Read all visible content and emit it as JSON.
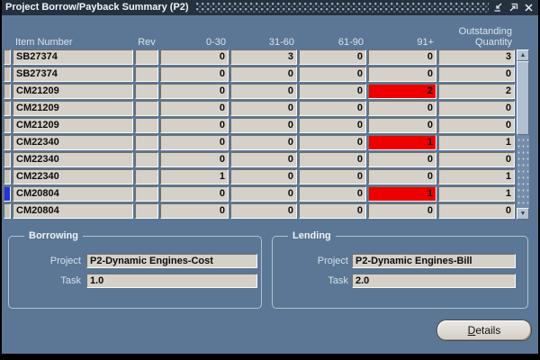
{
  "window": {
    "title": "Project Borrow/Payback Summary (P2)"
  },
  "table": {
    "columns": [
      {
        "id": "item",
        "label": "Item Number"
      },
      {
        "id": "rev",
        "label": "Rev"
      },
      {
        "id": "b0_30",
        "label": "0-30"
      },
      {
        "id": "b31_60",
        "label": "31-60"
      },
      {
        "id": "b61_90",
        "label": "61-90"
      },
      {
        "id": "b91_plus",
        "label": "91+"
      },
      {
        "id": "outstanding",
        "label": "Outstanding Quantity"
      }
    ],
    "rows": [
      {
        "item": "SB27374",
        "rev": "",
        "aging": [
          "0",
          "3",
          "0",
          "0"
        ],
        "outstanding": "3",
        "alert_91": false,
        "current": false
      },
      {
        "item": "SB27374",
        "rev": "",
        "aging": [
          "0",
          "0",
          "0",
          "0"
        ],
        "outstanding": "0",
        "alert_91": false,
        "current": false
      },
      {
        "item": "CM21209",
        "rev": "",
        "aging": [
          "0",
          "0",
          "0",
          "2"
        ],
        "outstanding": "2",
        "alert_91": true,
        "current": false
      },
      {
        "item": "CM21209",
        "rev": "",
        "aging": [
          "0",
          "0",
          "0",
          "0"
        ],
        "outstanding": "0",
        "alert_91": false,
        "current": false
      },
      {
        "item": "CM21209",
        "rev": "",
        "aging": [
          "0",
          "0",
          "0",
          "0"
        ],
        "outstanding": "0",
        "alert_91": false,
        "current": false
      },
      {
        "item": "CM22340",
        "rev": "",
        "aging": [
          "0",
          "0",
          "0",
          "1"
        ],
        "outstanding": "1",
        "alert_91": true,
        "current": false
      },
      {
        "item": "CM22340",
        "rev": "",
        "aging": [
          "0",
          "0",
          "0",
          "0"
        ],
        "outstanding": "0",
        "alert_91": false,
        "current": false
      },
      {
        "item": "CM22340",
        "rev": "",
        "aging": [
          "1",
          "0",
          "0",
          "0"
        ],
        "outstanding": "1",
        "alert_91": false,
        "current": false
      },
      {
        "item": "CM20804",
        "rev": "",
        "aging": [
          "0",
          "0",
          "0",
          "1"
        ],
        "outstanding": "1",
        "alert_91": true,
        "current": true
      },
      {
        "item": "CM20804",
        "rev": "",
        "aging": [
          "0",
          "0",
          "0",
          "0"
        ],
        "outstanding": "0",
        "alert_91": false,
        "current": false
      }
    ]
  },
  "borrowing": {
    "legend": "Borrowing",
    "project_label": "Project",
    "project_value": "P2-Dynamic Engines-Cost",
    "task_label": "Task",
    "task_value": "1.0"
  },
  "lending": {
    "legend": "Lending",
    "project_label": "Project",
    "project_value": "P2-Dynamic Engines-Bill",
    "task_label": "Task",
    "task_value": "2.0"
  },
  "actions": {
    "details_label": "Details"
  },
  "colors": {
    "alert_red": "#ee0000",
    "current_record_blue": "#2433e0",
    "canvas_blue": "#5b7795",
    "titlebar_navy": "#26313f",
    "field_gray": "#d5d1c9"
  }
}
